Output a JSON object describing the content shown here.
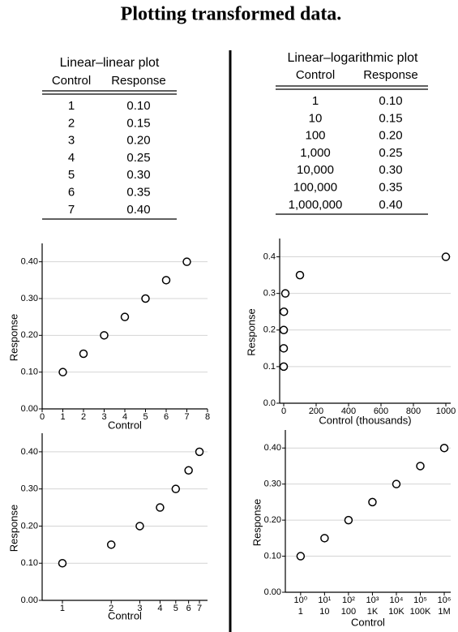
{
  "title": "Plotting transformed data.",
  "tables": [
    {
      "title": "Linear–linear plot",
      "headers": [
        "Control",
        "Response"
      ],
      "rows": [
        [
          "1",
          "0.10"
        ],
        [
          "2",
          "0.15"
        ],
        [
          "3",
          "0.20"
        ],
        [
          "4",
          "0.25"
        ],
        [
          "5",
          "0.30"
        ],
        [
          "6",
          "0.35"
        ],
        [
          "7",
          "0.40"
        ]
      ]
    },
    {
      "title": "Linear–logarithmic plot",
      "headers": [
        "Control",
        "Response"
      ],
      "rows": [
        [
          "1",
          "0.10"
        ],
        [
          "10",
          "0.15"
        ],
        [
          "100",
          "0.20"
        ],
        [
          "1,000",
          "0.25"
        ],
        [
          "10,000",
          "0.30"
        ],
        [
          "100,000",
          "0.35"
        ],
        [
          "1,000,000",
          "0.40"
        ]
      ]
    }
  ],
  "chart_data": [
    {
      "type": "scatter",
      "xlabel": "Control",
      "ylabel": "Response",
      "grid": true,
      "color": "#000000",
      "x": [
        1,
        2,
        3,
        4,
        5,
        6,
        7
      ],
      "values": [
        0.1,
        0.15,
        0.2,
        0.25,
        0.3,
        0.35,
        0.4
      ],
      "xlim": [
        0,
        8
      ],
      "xticks": [
        0,
        1,
        2,
        3,
        4,
        5,
        6,
        7,
        8
      ],
      "ylim": [
        0,
        0.45
      ],
      "yticks": [
        {
          "value": 0,
          "label": "0.00"
        },
        {
          "value": 0.1,
          "label": "0.10"
        },
        {
          "value": 0.2,
          "label": "0.20"
        },
        {
          "value": 0.3,
          "label": "0.30"
        },
        {
          "value": 0.4,
          "label": "0.40"
        }
      ]
    },
    {
      "type": "scatter",
      "xlabel": "Control (thousands)",
      "ylabel": "Response",
      "grid": true,
      "color": "#000000",
      "x": [
        0.001,
        0.01,
        0.1,
        1,
        10,
        100,
        1000
      ],
      "values": [
        0.1,
        0.15,
        0.2,
        0.25,
        0.3,
        0.35,
        0.4
      ],
      "xlim": [
        -25,
        1030
      ],
      "xticks": [
        0,
        200,
        400,
        600,
        800,
        1000
      ],
      "ylim": [
        0,
        0.45
      ],
      "yticks": [
        {
          "value": 0,
          "label": "0.0"
        },
        0.1,
        0.2,
        0.3,
        0.4
      ]
    },
    {
      "type": "scatter",
      "xlabel": "Control",
      "ylabel": "Response",
      "grid": true,
      "log_x": true,
      "color": "#000000",
      "x": [
        1,
        2,
        3,
        4,
        5,
        6,
        7
      ],
      "values": [
        0.1,
        0.15,
        0.2,
        0.25,
        0.3,
        0.35,
        0.4
      ],
      "xlim": [
        0.75,
        7.85
      ],
      "xticks": [
        1,
        2,
        3,
        4,
        5,
        6,
        7
      ],
      "ylim": [
        0,
        0.45
      ],
      "yticks": [
        {
          "value": 0,
          "label": "0.00"
        },
        {
          "value": 0.1,
          "label": "0.10"
        },
        {
          "value": 0.2,
          "label": "0.20"
        },
        {
          "value": 0.3,
          "label": "0.30"
        },
        {
          "value": 0.4,
          "label": "0.40"
        }
      ]
    },
    {
      "type": "scatter",
      "xlabel": "Control",
      "ylabel": "Response",
      "grid": true,
      "log_x": true,
      "color": "#000000",
      "x": [
        1,
        10,
        100,
        1000,
        10000,
        100000,
        1000000
      ],
      "values": [
        0.1,
        0.15,
        0.2,
        0.25,
        0.3,
        0.35,
        0.4
      ],
      "xlim": [
        0.23,
        1860000
      ],
      "xticks": [
        {
          "value": 1,
          "label": "10⁰"
        },
        {
          "value": 10,
          "label": "10¹"
        },
        {
          "value": 100,
          "label": "10²"
        },
        {
          "value": 1000,
          "label": "10³"
        },
        {
          "value": 10000,
          "label": "10⁴"
        },
        {
          "value": 100000,
          "label": "10⁵"
        },
        {
          "value": 1000000,
          "label": "10⁶"
        }
      ],
      "xtick_sublabels": [
        "1",
        "10",
        "100",
        "1K",
        "10K",
        "100K",
        "1M"
      ],
      "ylim": [
        0,
        0.45
      ],
      "yticks": [
        {
          "value": 0,
          "label": "0.00"
        },
        {
          "value": 0.1,
          "label": "0.10"
        },
        {
          "value": 0.2,
          "label": "0.20"
        },
        {
          "value": 0.3,
          "label": "0.30"
        },
        {
          "value": 0.4,
          "label": "0.40"
        }
      ]
    }
  ]
}
